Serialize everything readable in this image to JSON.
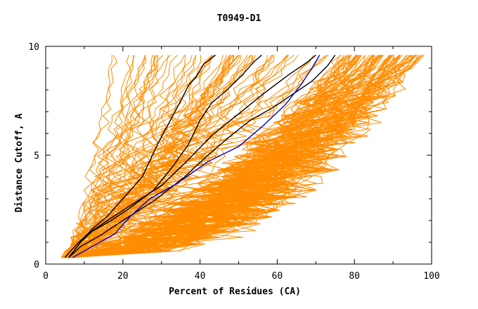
{
  "chart_data": {
    "type": "line",
    "title": "T0949-D1",
    "xlabel": "Percent of Residues (CA)",
    "ylabel": "Distance Cutoff, A",
    "xlim": [
      0,
      100
    ],
    "ylim": [
      0,
      10
    ],
    "xticks": [
      0,
      20,
      40,
      60,
      80,
      100
    ],
    "yticks": [
      0,
      5,
      10
    ],
    "grid": false,
    "colors": {
      "background_group": "#ff8c00",
      "highlight": "#000000",
      "reference": "#0000cc"
    },
    "series": [
      {
        "group": "highlight",
        "color": "#000000",
        "x": [
          6,
          9,
          12,
          16,
          20,
          25,
          29,
          32,
          35,
          37,
          39,
          41,
          44
        ],
        "y": [
          0.3,
          1,
          1.6,
          2.2,
          3,
          4,
          5.5,
          6.5,
          7.5,
          8.2,
          8.6,
          9.2,
          9.6
        ]
      },
      {
        "group": "highlight",
        "color": "#000000",
        "x": [
          6,
          9,
          12,
          17,
          22,
          28,
          33,
          37,
          40,
          43,
          47,
          51,
          54,
          56
        ],
        "y": [
          0.3,
          1,
          1.5,
          2,
          2.6,
          3.4,
          4.5,
          5.5,
          6.6,
          7.4,
          8,
          8.7,
          9.3,
          9.6
        ]
      },
      {
        "group": "highlight",
        "color": "#000000",
        "x": [
          5,
          8,
          11,
          16,
          22,
          30,
          37,
          43,
          50,
          57,
          63,
          68,
          70
        ],
        "y": [
          0.3,
          0.9,
          1.4,
          2,
          2.7,
          3.6,
          4.8,
          5.9,
          6.9,
          7.9,
          8.7,
          9.3,
          9.6
        ]
      },
      {
        "group": "highlight",
        "color": "#000000",
        "x": [
          6,
          9,
          14,
          20,
          28,
          36,
          42,
          48,
          53,
          59,
          64,
          69,
          73,
          75
        ],
        "y": [
          0.3,
          0.8,
          1.3,
          2,
          2.9,
          4,
          5,
          5.9,
          6.6,
          7.2,
          7.8,
          8.4,
          9.1,
          9.6
        ]
      },
      {
        "group": "reference",
        "color": "#0000cc",
        "x": [
          7,
          12,
          18,
          22,
          27,
          34,
          42,
          50,
          56,
          62,
          66,
          69,
          71
        ],
        "y": [
          0.3,
          0.8,
          1.4,
          2.2,
          3,
          3.7,
          4.7,
          5.4,
          6.3,
          7.3,
          8.2,
          9,
          9.6
        ]
      }
    ]
  }
}
